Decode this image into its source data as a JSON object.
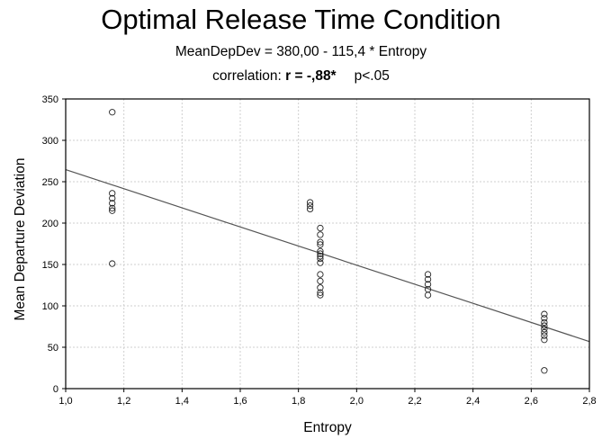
{
  "chart_data": {
    "type": "scatter",
    "title": "Optimal Release Time Condition",
    "subtitle": "MeanDepDev = 380,00 - 115,4  * Entropy",
    "correlation_prefix": "correlation:",
    "correlation_value": "r = -,88*",
    "p_value": "p<.05",
    "xlabel": "Entropy",
    "ylabel": "Mean Departure Deviation",
    "xlim": [
      1.0,
      2.8
    ],
    "ylim": [
      0,
      350
    ],
    "grid": true,
    "x_ticks": [
      1.0,
      1.2,
      1.4,
      1.6,
      1.8,
      2.0,
      2.2,
      2.4,
      2.6,
      2.8
    ],
    "x_tick_labels": [
      "1,0",
      "1,2",
      "1,4",
      "1,6",
      "1,8",
      "2,0",
      "2,2",
      "2,4",
      "2,6",
      "2,8"
    ],
    "y_ticks": [
      0,
      50,
      100,
      150,
      200,
      250,
      300,
      350
    ],
    "y_tick_labels": [
      "0",
      "50",
      "100",
      "150",
      "200",
      "250",
      "300",
      "350"
    ],
    "regression": {
      "intercept": 380.0,
      "slope": -115.4
    },
    "points": [
      {
        "x": 1.16,
        "y": 334
      },
      {
        "x": 1.16,
        "y": 236
      },
      {
        "x": 1.16,
        "y": 230
      },
      {
        "x": 1.16,
        "y": 224
      },
      {
        "x": 1.16,
        "y": 218
      },
      {
        "x": 1.16,
        "y": 215
      },
      {
        "x": 1.16,
        "y": 151
      },
      {
        "x": 1.84,
        "y": 225
      },
      {
        "x": 1.84,
        "y": 221
      },
      {
        "x": 1.84,
        "y": 217
      },
      {
        "x": 1.875,
        "y": 194
      },
      {
        "x": 1.875,
        "y": 186
      },
      {
        "x": 1.875,
        "y": 177
      },
      {
        "x": 1.875,
        "y": 174
      },
      {
        "x": 1.875,
        "y": 166
      },
      {
        "x": 1.875,
        "y": 163
      },
      {
        "x": 1.875,
        "y": 160
      },
      {
        "x": 1.875,
        "y": 157
      },
      {
        "x": 1.875,
        "y": 152
      },
      {
        "x": 1.875,
        "y": 138
      },
      {
        "x": 1.875,
        "y": 130
      },
      {
        "x": 1.875,
        "y": 122
      },
      {
        "x": 1.875,
        "y": 116
      },
      {
        "x": 1.875,
        "y": 113
      },
      {
        "x": 2.245,
        "y": 138
      },
      {
        "x": 2.245,
        "y": 132
      },
      {
        "x": 2.245,
        "y": 126
      },
      {
        "x": 2.245,
        "y": 120
      },
      {
        "x": 2.245,
        "y": 113
      },
      {
        "x": 2.645,
        "y": 90
      },
      {
        "x": 2.645,
        "y": 85
      },
      {
        "x": 2.645,
        "y": 80
      },
      {
        "x": 2.645,
        "y": 76
      },
      {
        "x": 2.645,
        "y": 72
      },
      {
        "x": 2.645,
        "y": 68
      },
      {
        "x": 2.645,
        "y": 64
      },
      {
        "x": 2.645,
        "y": 59
      },
      {
        "x": 2.645,
        "y": 22
      }
    ]
  }
}
